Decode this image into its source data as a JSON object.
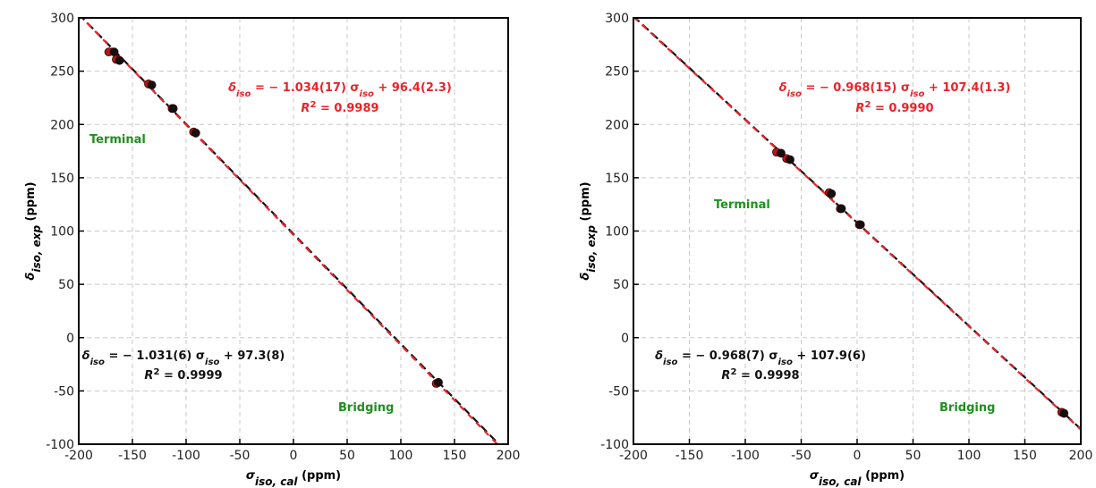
{
  "chart_data": [
    {
      "type": "scatter",
      "xlabel": [
        {
          "text": "σ"
        },
        {
          "sub": "iso, cal"
        },
        {
          "text": " (ppm)"
        }
      ],
      "ylabel": [
        {
          "text": "δ"
        },
        {
          "sub": "iso, exp"
        },
        {
          "text": " (ppm)"
        }
      ],
      "xlim": [
        -200,
        200
      ],
      "ylim": [
        -100,
        300
      ],
      "xticks": [
        -200,
        -150,
        -100,
        -50,
        0,
        50,
        100,
        150,
        200
      ],
      "yticks": [
        -100,
        -50,
        0,
        50,
        100,
        150,
        200,
        250,
        300
      ],
      "grid": true,
      "series": [
        {
          "color": "#b01818",
          "x": [
            -172,
            -165,
            -135,
            -113,
            -93,
            133
          ],
          "values": [
            268,
            261,
            238,
            215,
            193,
            -43
          ]
        },
        {
          "color": "#111111",
          "x": [
            -167,
            -162,
            -132,
            -112,
            -91,
            135
          ],
          "values": [
            268,
            260,
            237,
            215,
            192,
            -42
          ]
        }
      ],
      "lines": [
        {
          "color": "#111111",
          "slope": -1.031,
          "intercept": 97.3
        },
        {
          "color": "#e8242a",
          "slope": -1.034,
          "intercept": 96.4
        }
      ],
      "annotations": [
        {
          "color": "#e8242a",
          "parts": [
            {
              "text": "δ"
            },
            {
              "sub": "iso"
            },
            {
              "text": " = − 1.034(17) σ"
            },
            {
              "sub": "iso"
            },
            {
              "text": " + 96.4(2.3)"
            }
          ]
        },
        {
          "color": "#e8242a",
          "parts": [
            {
              "text": "R"
            },
            {
              "sup": "2"
            },
            {
              "text": " = 0.9989"
            }
          ]
        },
        {
          "color": "#1f8f1f",
          "parts": [
            {
              "text": "Terminal"
            }
          ]
        },
        {
          "color": "#111111",
          "parts": [
            {
              "text": "δ"
            },
            {
              "sub": "iso"
            },
            {
              "text": " = − 1.031(6) σ"
            },
            {
              "sub": "iso"
            },
            {
              "text": " + 97.3(8)"
            }
          ]
        },
        {
          "color": "#111111",
          "parts": [
            {
              "text": "R"
            },
            {
              "sup": "2"
            },
            {
              "text": " = 0.9999"
            }
          ]
        },
        {
          "color": "#1f8f1f",
          "parts": [
            {
              "text": "Bridging"
            }
          ]
        }
      ]
    },
    {
      "type": "scatter",
      "xlabel": [
        {
          "text": "σ"
        },
        {
          "sub": "iso, cal"
        },
        {
          "text": " (ppm)"
        }
      ],
      "ylabel": [
        {
          "text": "δ"
        },
        {
          "sub": "iso, exp"
        },
        {
          "text": " (ppm)"
        }
      ],
      "xlim": [
        -200,
        200
      ],
      "ylim": [
        -100,
        300
      ],
      "xticks": [
        -200,
        -150,
        -100,
        -50,
        0,
        50,
        100,
        150,
        200
      ],
      "yticks": [
        -100,
        -50,
        0,
        50,
        100,
        150,
        200,
        250,
        300
      ],
      "grid": true,
      "series": [
        {
          "color": "#b01818",
          "x": [
            -72,
            -63,
            -25,
            -15,
            2,
            183
          ],
          "values": [
            174,
            168,
            136,
            121,
            106,
            -70
          ]
        },
        {
          "color": "#111111",
          "x": [
            -68,
            -60,
            -23,
            -14,
            3,
            185
          ],
          "values": [
            173,
            167,
            135,
            121,
            106,
            -71
          ]
        }
      ],
      "lines": [
        {
          "color": "#111111",
          "slope": -0.968,
          "intercept": 107.9
        },
        {
          "color": "#e8242a",
          "slope": -0.968,
          "intercept": 107.4
        }
      ],
      "annotations": [
        {
          "color": "#e8242a",
          "parts": [
            {
              "text": "δ"
            },
            {
              "sub": "iso"
            },
            {
              "text": " = − 0.968(15) σ"
            },
            {
              "sub": "iso"
            },
            {
              "text": " + 107.4(1.3)"
            }
          ]
        },
        {
          "color": "#e8242a",
          "parts": [
            {
              "text": "R"
            },
            {
              "sup": "2"
            },
            {
              "text": " = 0.9990"
            }
          ]
        },
        {
          "color": "#1f8f1f",
          "parts": [
            {
              "text": "Terminal"
            }
          ]
        },
        {
          "color": "#111111",
          "parts": [
            {
              "text": "δ"
            },
            {
              "sub": "iso"
            },
            {
              "text": " = − 0.968(7) σ"
            },
            {
              "sub": "iso"
            },
            {
              "text": " + 107.9(6)"
            }
          ]
        },
        {
          "color": "#111111",
          "parts": [
            {
              "text": "R"
            },
            {
              "sup": "2"
            },
            {
              "text": " = 0.9998"
            }
          ]
        },
        {
          "color": "#1f8f1f",
          "parts": [
            {
              "text": "Bridging"
            }
          ]
        }
      ]
    }
  ]
}
